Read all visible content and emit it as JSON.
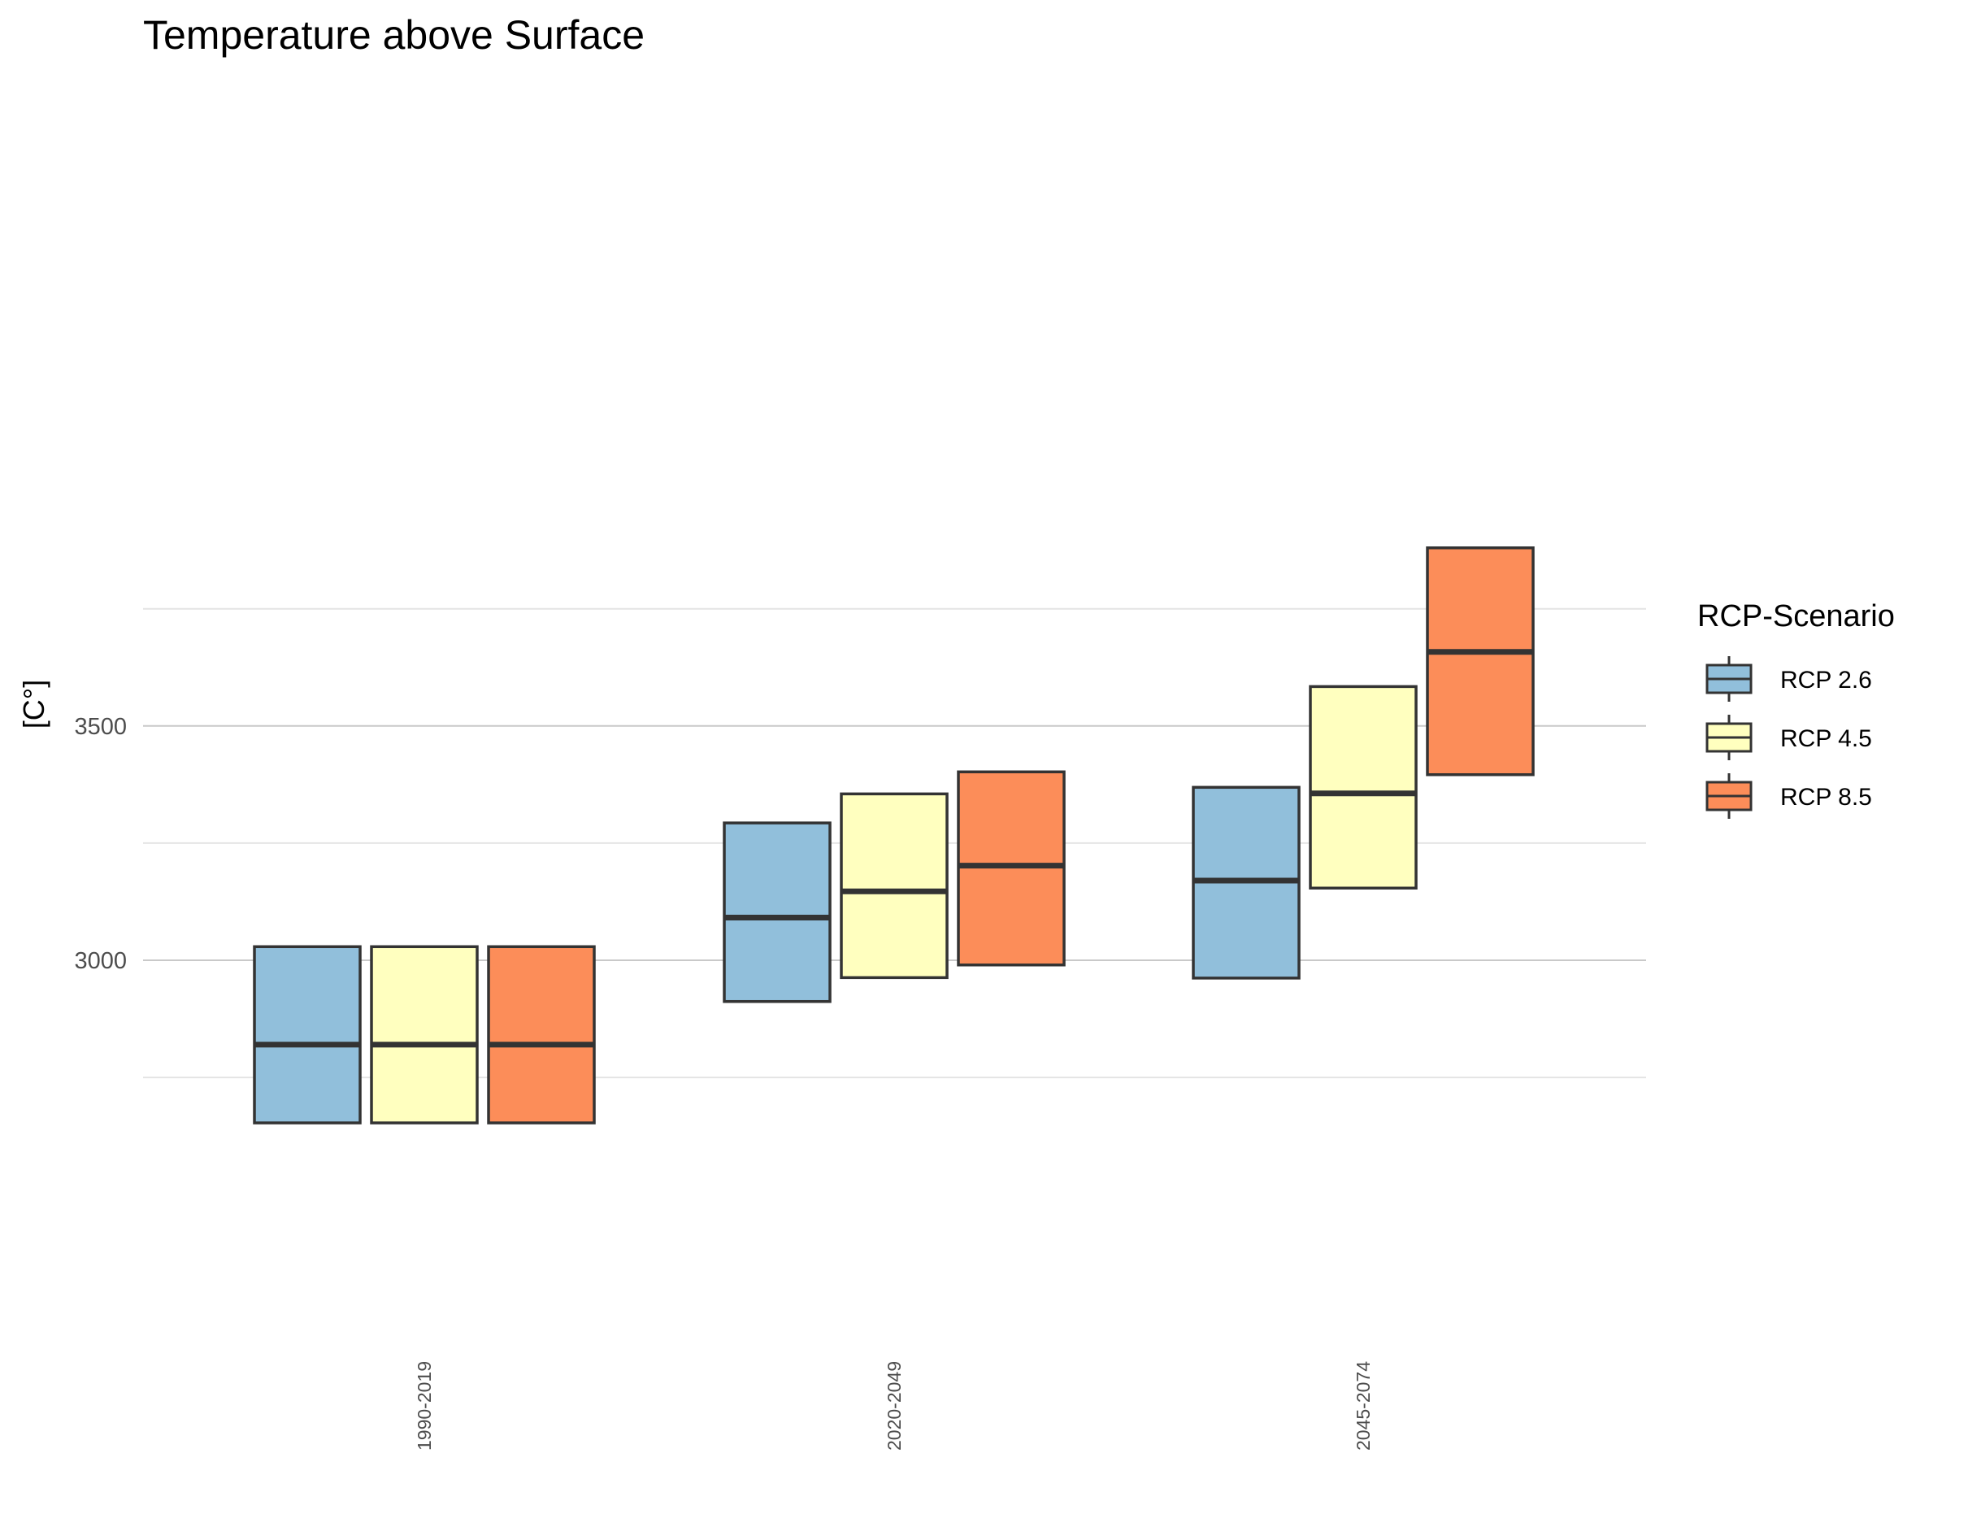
{
  "chart_data": {
    "type": "boxplot",
    "title": "Temperature above Surface",
    "ylabel": "[C°]",
    "xlabel": "",
    "categories": [
      "1990-2019",
      "2020-2049",
      "2045-2074"
    ],
    "y_ticks": [
      3000,
      3500
    ],
    "y_minor_grid": [
      2750,
      3250,
      3750
    ],
    "ylim": [
      2600,
      3950
    ],
    "grid": true,
    "legend": {
      "title": "RCP-Scenario",
      "position": "right"
    },
    "series": [
      {
        "name": "RCP 2.6",
        "color": "#91bfdb",
        "boxes": [
          {
            "low": 2653,
            "median": 2820,
            "high": 3029
          },
          {
            "low": 2912,
            "median": 3091,
            "high": 3293
          },
          {
            "low": 2962,
            "median": 3170,
            "high": 3369
          }
        ]
      },
      {
        "name": "RCP 4.5",
        "color": "#ffffbf",
        "boxes": [
          {
            "low": 2653,
            "median": 2820,
            "high": 3029
          },
          {
            "low": 2963,
            "median": 3147,
            "high": 3355
          },
          {
            "low": 3154,
            "median": 3356,
            "high": 3584
          }
        ]
      },
      {
        "name": "RCP 8.5",
        "color": "#fc8d59",
        "boxes": [
          {
            "low": 2653,
            "median": 2820,
            "high": 3029
          },
          {
            "low": 2990,
            "median": 3202,
            "high": 3402
          },
          {
            "low": 3396,
            "median": 3658,
            "high": 3880
          }
        ]
      }
    ]
  }
}
